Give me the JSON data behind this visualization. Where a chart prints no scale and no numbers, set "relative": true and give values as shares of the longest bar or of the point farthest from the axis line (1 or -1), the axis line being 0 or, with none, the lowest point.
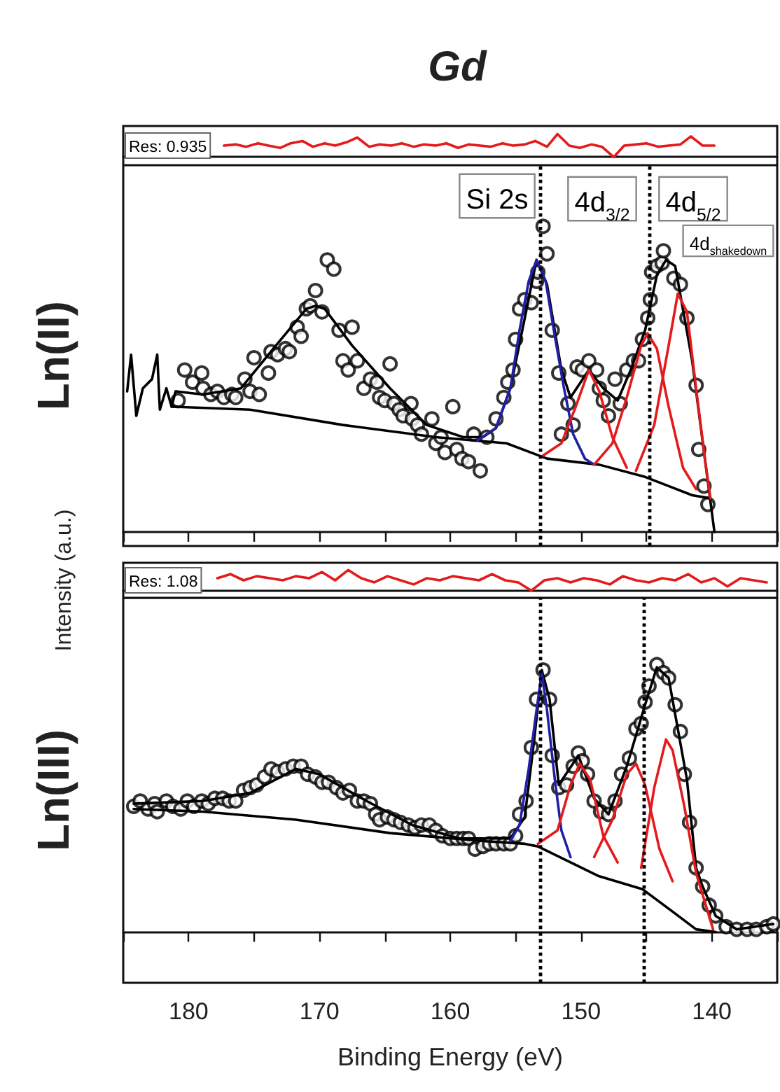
{
  "chart_data": [
    {
      "type": "line",
      "title": "Gd",
      "annotations": [
        "Res: 0.935"
      ],
      "relative": true,
      "tick_labels": false,
      "xlim": [
        185,
        135
      ],
      "x": [
        177.3,
        176.4,
        175.6,
        174.7,
        173.9,
        173.0,
        172.2,
        171.3,
        170.5,
        169.6,
        168.8,
        167.9,
        167.1,
        166.2,
        165.4,
        164.5,
        163.7,
        162.8,
        162.0,
        161.1,
        160.3,
        159.4,
        158.6,
        157.7,
        156.9,
        156.0,
        155.2,
        154.3,
        153.5,
        152.6,
        151.8,
        150.9,
        150.1,
        149.2,
        148.4,
        147.5,
        146.7,
        145.8,
        145.0,
        144.1,
        143.3,
        142.4,
        141.6,
        140.7,
        139.8
      ],
      "series": [
        {
          "color": "#e41a1c",
          "values": [
            0.5,
            0.55,
            0.45,
            0.6,
            0.5,
            0.4,
            0.6,
            0.7,
            0.45,
            0.6,
            0.5,
            0.65,
            0.85,
            0.45,
            0.55,
            0.5,
            0.6,
            0.45,
            0.55,
            0.5,
            0.6,
            0.4,
            0.55,
            0.5,
            0.45,
            0.6,
            0.5,
            0.55,
            0.7,
            0.45,
            1.0,
            0.5,
            0.4,
            0.55,
            0.45,
            0.0,
            0.5,
            0.55,
            0.6,
            0.45,
            0.5,
            0.55,
            0.9,
            0.5,
            0.5
          ]
        }
      ]
    },
    {
      "type": "line",
      "ylabel": "Ln(II)",
      "relative": true,
      "tick_labels": false,
      "xlim": [
        185,
        135
      ],
      "xticks": [
        {
          "value": 185,
          "label": null
        },
        {
          "value": 180,
          "label": null
        },
        {
          "value": 175,
          "label": null
        },
        {
          "value": 170,
          "label": null
        },
        {
          "value": 165,
          "label": null
        },
        {
          "value": 160,
          "label": null
        },
        {
          "value": 155,
          "label": null
        },
        {
          "value": 150,
          "label": null
        },
        {
          "value": 145,
          "label": null
        },
        {
          "value": 140,
          "label": null
        },
        {
          "value": 135,
          "label": null
        }
      ],
      "ref_lines": [
        {
          "axis": "x",
          "value": 153.1,
          "color": "#000000",
          "line_style": "dotted"
        },
        {
          "axis": "x",
          "value": 144.8,
          "color": "#000000",
          "line_style": "dotted"
        }
      ],
      "annotations": [
        "Si 2s",
        "4d$_{3/2}$",
        "4d$_{5/2}$",
        "4d$_{shakedown}$"
      ],
      "series": [
        {
          "type": "scatter",
          "color": "#000000",
          "marker": "circle",
          "x": [
            180.8,
            180.3,
            179.7,
            179.0,
            178.9,
            178.3,
            177.8,
            177.3,
            176.7,
            176.4,
            175.7,
            175.3,
            175.0,
            174.6,
            173.9,
            173.7,
            173.2,
            172.6,
            172.3,
            171.7,
            171.4,
            171.0,
            170.7,
            170.3,
            169.8,
            169.4,
            168.9,
            168.5,
            168.2,
            167.8,
            167.5,
            167.1,
            166.6,
            166.1,
            165.6,
            165.4,
            165.0,
            164.6,
            164.3,
            163.9,
            163.6,
            163.0,
            162.9,
            162.5,
            162.2,
            161.4,
            161.1,
            160.7,
            160.4,
            159.8,
            159.5,
            159.1,
            158.6,
            158.2,
            157.7,
            157.2,
            156.5,
            155.9,
            155.6,
            155.2,
            155.0,
            154.7,
            154.3,
            153.8,
            153.4,
            153.3,
            152.9,
            152.6,
            152.2,
            151.7,
            151.5,
            151.0,
            150.6,
            150.3,
            149.9,
            149.4,
            148.8,
            148.6,
            148.3,
            147.9,
            147.4,
            147.0,
            146.5,
            146.0,
            145.6,
            145.3,
            144.9,
            144.7,
            144.6,
            144.2,
            143.8,
            143.7,
            142.9,
            142.4,
            141.9,
            141.2,
            141.0,
            140.6,
            140.3
          ],
          "values": [
            0.43,
            0.53,
            0.49,
            0.52,
            0.47,
            0.45,
            0.46,
            0.44,
            0.45,
            0.44,
            0.5,
            0.46,
            0.57,
            0.45,
            0.52,
            0.59,
            0.58,
            0.6,
            0.59,
            0.67,
            0.64,
            0.73,
            0.74,
            0.79,
            0.72,
            0.89,
            0.86,
            0.66,
            0.56,
            0.53,
            0.67,
            0.56,
            0.47,
            0.5,
            0.49,
            0.44,
            0.43,
            0.55,
            0.42,
            0.4,
            0.38,
            0.42,
            0.37,
            0.35,
            0.32,
            0.37,
            0.29,
            0.31,
            0.26,
            0.41,
            0.27,
            0.24,
            0.23,
            0.32,
            0.2,
            0.31,
            0.37,
            0.44,
            0.49,
            0.53,
            0.63,
            0.73,
            0.76,
            0.75,
            0.82,
            0.85,
            1.0,
            0.91,
            0.66,
            0.52,
            0.32,
            0.42,
            0.35,
            0.54,
            0.53,
            0.56,
            0.53,
            0.47,
            0.43,
            0.38,
            0.5,
            0.42,
            0.53,
            0.56,
            0.56,
            0.63,
            0.7,
            0.76,
            0.85,
            0.87,
            0.88,
            0.92,
            0.83,
            0.81,
            0.7,
            0.48,
            0.27,
            0.15,
            0.09
          ]
        },
        {
          "color": "#000000",
          "x": [
            184.7,
            184.4,
            184.0,
            183.5,
            182.8,
            182.4,
            182.2,
            181.7,
            181.3,
            181.0,
            178.9,
            176.0,
            173.9,
            171.0,
            170.3,
            169.6,
            167.5,
            164.6,
            161.8,
            159.0,
            157.5,
            156.5,
            155.4,
            154.3,
            153.4,
            152.6,
            151.5,
            150.8,
            149.4,
            148.3,
            147.2,
            146.2,
            145.1,
            144.2,
            143.5,
            142.8,
            141.5,
            140.5,
            139.8
          ],
          "values": [
            0.46,
            0.58,
            0.38,
            0.47,
            0.5,
            0.58,
            0.4,
            0.47,
            0.41,
            0.46,
            0.45,
            0.47,
            0.58,
            0.73,
            0.74,
            0.73,
            0.61,
            0.47,
            0.35,
            0.31,
            0.31,
            0.34,
            0.47,
            0.7,
            0.89,
            0.81,
            0.53,
            0.44,
            0.53,
            0.47,
            0.43,
            0.53,
            0.66,
            0.84,
            0.89,
            0.87,
            0.56,
            0.23,
            0.0
          ]
        },
        {
          "color": "#000000",
          "x": [
            181.3,
            175.3,
            168.2,
            161.1,
            155.7,
            152.6,
            148.6,
            145.1,
            143.3,
            141.5,
            140.1
          ],
          "values": [
            0.41,
            0.4,
            0.35,
            0.31,
            0.29,
            0.24,
            0.22,
            0.18,
            0.15,
            0.12,
            0.11
          ]
        },
        {
          "color": "#1f1fa8",
          "x": [
            157.9,
            156.5,
            155.4,
            154.7,
            154.0,
            153.4,
            152.7,
            152.0,
            151.3,
            150.6,
            149.7,
            149.0
          ],
          "values": [
            0.3,
            0.34,
            0.47,
            0.66,
            0.82,
            0.89,
            0.82,
            0.64,
            0.47,
            0.32,
            0.24,
            0.22
          ]
        },
        {
          "color": "#e41a1c",
          "x": [
            152.9,
            151.5,
            150.4,
            149.4,
            148.6,
            147.6,
            146.5
          ],
          "values": [
            0.25,
            0.29,
            0.41,
            0.53,
            0.46,
            0.31,
            0.21
          ]
        },
        {
          "color": "#e41a1c",
          "x": [
            149.0,
            147.6,
            146.5,
            145.4,
            144.9,
            144.2,
            143.3,
            142.2,
            141.2
          ],
          "values": [
            0.22,
            0.29,
            0.44,
            0.61,
            0.65,
            0.6,
            0.41,
            0.21,
            0.14
          ]
        },
        {
          "color": "#e41a1c",
          "x": [
            145.8,
            144.4,
            143.3,
            142.6,
            141.9,
            141.2,
            140.5,
            140.1
          ],
          "values": [
            0.2,
            0.35,
            0.61,
            0.78,
            0.72,
            0.47,
            0.23,
            0.11
          ]
        }
      ]
    },
    {
      "type": "line",
      "ylabel": "Intensity (a.u.)",
      "annotations": [
        "Res: 1.08"
      ],
      "relative": true,
      "tick_labels": false,
      "xlim": [
        185,
        135
      ],
      "x": [
        177.8,
        176.8,
        175.8,
        174.8,
        173.8,
        172.8,
        171.8,
        170.8,
        169.8,
        168.8,
        167.8,
        166.8,
        165.8,
        164.8,
        163.8,
        162.8,
        161.8,
        160.8,
        159.8,
        158.8,
        157.8,
        156.8,
        155.8,
        154.8,
        153.8,
        152.8,
        151.8,
        150.8,
        149.8,
        148.8,
        147.8,
        146.8,
        145.8,
        144.8,
        143.8,
        142.8,
        141.8,
        140.8,
        139.8,
        138.8,
        137.8,
        136.8,
        135.8
      ],
      "series": [
        {
          "color": "#e41a1c",
          "values": [
            0.6,
            0.8,
            0.5,
            0.7,
            0.6,
            0.5,
            0.7,
            0.6,
            0.9,
            0.5,
            1.0,
            0.6,
            0.4,
            0.7,
            0.5,
            0.3,
            0.6,
            0.5,
            0.7,
            0.6,
            0.5,
            0.8,
            0.5,
            0.4,
            0.0,
            0.5,
            0.6,
            0.4,
            0.6,
            0.5,
            0.3,
            0.7,
            0.5,
            0.4,
            0.6,
            0.5,
            0.8,
            0.4,
            0.6,
            0.2,
            0.6,
            0.5,
            0.4
          ]
        }
      ]
    },
    {
      "type": "line",
      "ylabel": "Ln(III)",
      "xlabel": "Binding Energy (eV)",
      "relative": true,
      "tick_labels": "x",
      "xlim": [
        185,
        135
      ],
      "xticks": [
        {
          "value": 185,
          "label": null
        },
        180,
        {
          "value": 175,
          "label": null
        },
        170,
        {
          "value": 165,
          "label": null
        },
        160,
        {
          "value": 155,
          "label": null
        },
        150,
        {
          "value": 145,
          "label": null
        },
        140,
        {
          "value": 135,
          "label": null
        }
      ],
      "ref_lines": [
        {
          "axis": "x",
          "value": 153.1,
          "color": "#000000",
          "line_style": "dotted"
        },
        {
          "axis": "x",
          "value": 145.2,
          "color": "#000000",
          "line_style": "dotted"
        }
      ],
      "series": [
        {
          "type": "scatter",
          "color": "#000000",
          "marker": "circle",
          "x": [
            184.2,
            183.7,
            183.1,
            182.6,
            182.4,
            181.7,
            181.2,
            180.6,
            180.1,
            179.6,
            179.0,
            178.5,
            178.0,
            177.4,
            176.9,
            176.4,
            175.8,
            175.3,
            174.8,
            174.2,
            173.7,
            173.2,
            172.6,
            172.0,
            171.4,
            170.9,
            170.3,
            169.8,
            169.3,
            168.7,
            168.2,
            167.7,
            167.1,
            166.6,
            166.1,
            165.7,
            165.4,
            164.8,
            164.3,
            163.8,
            163.2,
            162.7,
            162.2,
            161.6,
            161.1,
            160.6,
            160.0,
            159.5,
            159.0,
            158.6,
            158.1,
            157.5,
            157.0,
            156.5,
            155.9,
            155.4,
            155.0,
            154.7,
            154.2,
            153.8,
            153.4,
            152.9,
            152.4,
            152.2,
            151.7,
            151.1,
            150.6,
            150.2,
            149.9,
            149.5,
            149.0,
            148.5,
            147.9,
            147.4,
            146.9,
            146.3,
            145.8,
            145.4,
            145.1,
            144.8,
            144.2,
            143.7,
            143.3,
            142.8,
            142.4,
            142.1,
            141.7,
            141.2,
            140.7,
            140.2,
            139.7,
            138.9,
            138.1,
            137.3,
            136.6,
            135.8,
            135.3
          ],
          "values": [
            0.47,
            0.49,
            0.46,
            0.48,
            0.45,
            0.49,
            0.47,
            0.46,
            0.49,
            0.47,
            0.49,
            0.48,
            0.5,
            0.5,
            0.49,
            0.49,
            0.53,
            0.54,
            0.55,
            0.58,
            0.61,
            0.6,
            0.61,
            0.62,
            0.62,
            0.59,
            0.58,
            0.56,
            0.56,
            0.54,
            0.52,
            0.53,
            0.49,
            0.49,
            0.48,
            0.44,
            0.42,
            0.43,
            0.42,
            0.41,
            0.4,
            0.39,
            0.4,
            0.4,
            0.38,
            0.36,
            0.35,
            0.35,
            0.35,
            0.35,
            0.31,
            0.32,
            0.33,
            0.33,
            0.33,
            0.33,
            0.36,
            0.44,
            0.49,
            0.69,
            0.87,
            0.98,
            0.87,
            0.66,
            0.54,
            0.55,
            0.62,
            0.67,
            0.64,
            0.59,
            0.49,
            0.45,
            0.44,
            0.49,
            0.59,
            0.65,
            0.76,
            0.78,
            0.86,
            0.92,
            1.0,
            0.97,
            0.95,
            0.85,
            0.75,
            0.59,
            0.41,
            0.24,
            0.17,
            0.1,
            0.06,
            0.02,
            0.01,
            0.01,
            0.01,
            0.02,
            0.03
          ]
        },
        {
          "color": "#000000",
          "x": [
            184.2,
            178.9,
            175.3,
            171.8,
            170.0,
            166.4,
            162.9,
            159.3,
            155.4,
            154.3,
            153.6,
            153.0,
            152.4,
            151.7,
            150.2,
            149.0,
            147.9,
            146.5,
            145.1,
            144.2,
            143.3,
            141.9,
            141.2,
            140.7,
            139.7,
            138.1,
            135.3
          ],
          "values": [
            0.48,
            0.49,
            0.52,
            0.61,
            0.59,
            0.49,
            0.4,
            0.35,
            0.35,
            0.43,
            0.71,
            0.98,
            0.87,
            0.55,
            0.66,
            0.5,
            0.44,
            0.62,
            0.85,
            0.99,
            0.95,
            0.57,
            0.24,
            0.17,
            0.06,
            0.01,
            0.03
          ]
        },
        {
          "color": "#000000",
          "x": [
            184.2,
            178.9,
            171.8,
            164.6,
            157.5,
            154.3,
            153.3,
            148.7,
            145.3,
            143.1,
            141.2,
            139.7
          ],
          "values": [
            0.46,
            0.45,
            0.42,
            0.37,
            0.34,
            0.33,
            0.32,
            0.21,
            0.16,
            0.08,
            0.01,
            0.0
          ]
        },
        {
          "color": "#1f1fa8",
          "x": [
            155.4,
            154.7,
            154.0,
            153.4,
            153.0,
            152.6,
            152.0,
            151.5,
            150.8
          ],
          "values": [
            0.34,
            0.4,
            0.61,
            0.83,
            0.97,
            0.83,
            0.57,
            0.38,
            0.28
          ]
        },
        {
          "color": "#e41a1c",
          "x": [
            153.3,
            151.8,
            150.8,
            150.1,
            149.3,
            148.3,
            147.2
          ],
          "values": [
            0.33,
            0.38,
            0.55,
            0.63,
            0.57,
            0.36,
            0.26
          ]
        },
        {
          "color": "#e41a1c",
          "x": [
            149.0,
            147.6,
            146.5,
            145.8,
            145.1,
            144.0,
            143.0
          ],
          "values": [
            0.28,
            0.42,
            0.59,
            0.63,
            0.55,
            0.31,
            0.19
          ]
        },
        {
          "color": "#e41a1c",
          "x": [
            145.4,
            144.4,
            143.5,
            143.0,
            142.1,
            141.2,
            139.9
          ],
          "values": [
            0.24,
            0.54,
            0.72,
            0.68,
            0.47,
            0.22,
            0.01
          ]
        }
      ]
    }
  ]
}
